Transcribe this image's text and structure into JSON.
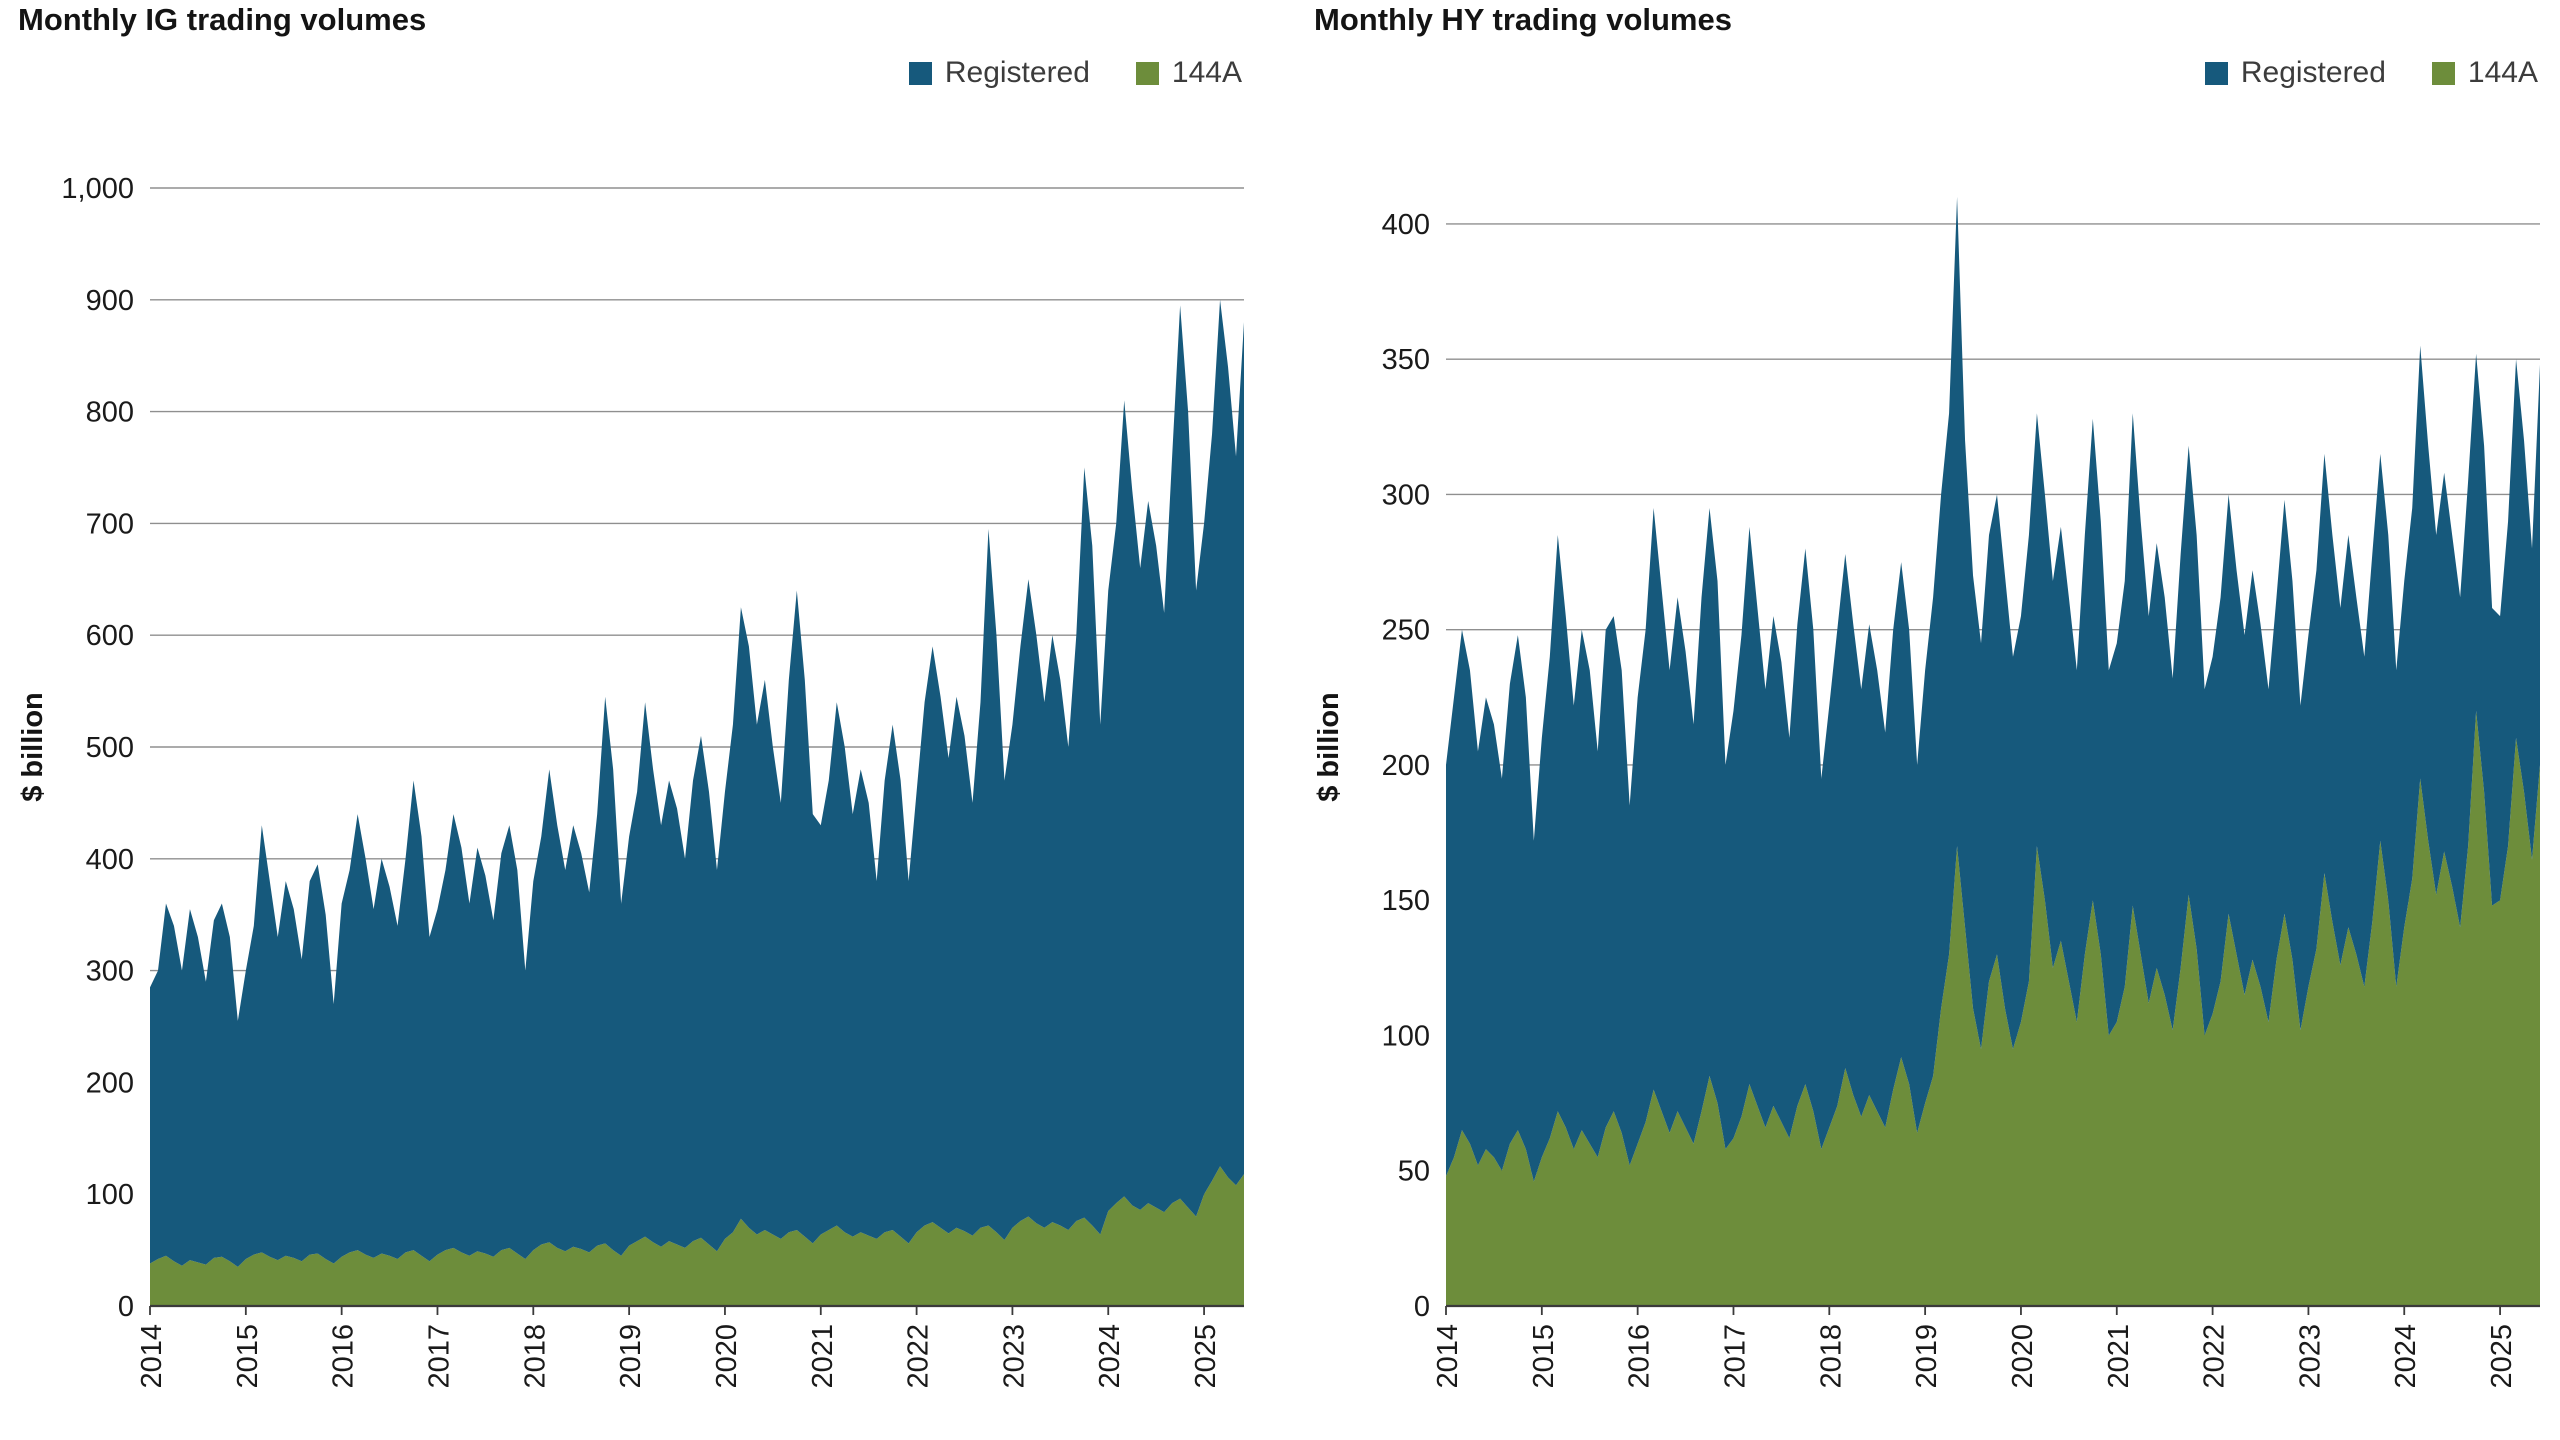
{
  "colors": {
    "registered": "#16597C",
    "a144": "#6D8D3B",
    "grid": "#8F8F8F",
    "axis": "#3A3A3A",
    "tick_text": "#1A1A1A",
    "title_text": "#141414",
    "legend_text": "#3C3C3C",
    "background": "#FFFFFF"
  },
  "chart_data": [
    {
      "type": "area",
      "stacked": true,
      "title": "Monthly IG trading volumes",
      "ylabel": "$ billion",
      "x_unit": "month",
      "x_start": "2014-01",
      "x_end": "2025-06",
      "n_points": 138,
      "x_tick_labels": [
        "2014",
        "2015",
        "2016",
        "2017",
        "2018",
        "2019",
        "2020",
        "2021",
        "2022",
        "2023",
        "2024",
        "2025"
      ],
      "x_tick_indices": [
        0,
        12,
        24,
        36,
        48,
        60,
        72,
        84,
        96,
        108,
        120,
        132
      ],
      "ylim": [
        0,
        1000
      ],
      "y_ticks": [
        0,
        100,
        200,
        300,
        400,
        500,
        600,
        700,
        800,
        900,
        1000
      ],
      "y_tick_labels": [
        "0",
        "100",
        "200",
        "300",
        "400",
        "500",
        "600",
        "700",
        "800",
        "900",
        "1,000"
      ],
      "grid": true,
      "legend_position": "top-right",
      "stack_order": [
        "144A",
        "Registered"
      ],
      "series": [
        {
          "name": "Registered",
          "color": "#16597C",
          "values": [
            247,
            258,
            315,
            300,
            264,
            314,
            291,
            253,
            302,
            316,
            290,
            220,
            258,
            294,
            382,
            336,
            289,
            335,
            312,
            270,
            334,
            348,
            308,
            232,
            316,
            342,
            390,
            354,
            312,
            353,
            330,
            298,
            352,
            420,
            375,
            290,
            309,
            340,
            388,
            362,
            315,
            361,
            338,
            301,
            355,
            378,
            343,
            258,
            330,
            365,
            423,
            378,
            341,
            377,
            354,
            322,
            386,
            489,
            430,
            315,
            366,
            402,
            478,
            423,
            377,
            412,
            390,
            348,
            412,
            449,
            405,
            341,
            400,
            454,
            547,
            520,
            456,
            492,
            436,
            390,
            494,
            572,
            498,
            384,
            366,
            402,
            468,
            434,
            378,
            414,
            387,
            320,
            404,
            452,
            408,
            324,
            394,
            468,
            515,
            475,
            425,
            475,
            443,
            387,
            470,
            623,
            534,
            411,
            450,
            514,
            570,
            526,
            470,
            525,
            488,
            432,
            524,
            671,
            608,
            456,
            555,
            608,
            712,
            640,
            574,
            628,
            592,
            536,
            668,
            799,
            712,
            560,
            600,
            668,
            775,
            725,
            652,
            762
          ]
        },
        {
          "name": "144A",
          "color": "#6D8D3B",
          "values": [
            38,
            42,
            45,
            40,
            36,
            41,
            39,
            37,
            43,
            44,
            40,
            35,
            42,
            46,
            48,
            44,
            41,
            45,
            43,
            40,
            46,
            47,
            42,
            38,
            44,
            48,
            50,
            46,
            43,
            47,
            45,
            42,
            48,
            50,
            45,
            40,
            46,
            50,
            52,
            48,
            45,
            49,
            47,
            44,
            50,
            52,
            47,
            42,
            50,
            55,
            57,
            52,
            49,
            53,
            51,
            48,
            54,
            56,
            50,
            45,
            54,
            58,
            62,
            57,
            53,
            58,
            55,
            52,
            58,
            61,
            55,
            49,
            60,
            66,
            78,
            70,
            64,
            68,
            64,
            60,
            66,
            68,
            62,
            56,
            64,
            68,
            72,
            66,
            62,
            66,
            63,
            60,
            66,
            68,
            62,
            56,
            66,
            72,
            75,
            70,
            65,
            70,
            67,
            63,
            70,
            72,
            66,
            59,
            70,
            76,
            80,
            74,
            70,
            75,
            72,
            68,
            76,
            79,
            72,
            64,
            85,
            92,
            98,
            90,
            86,
            92,
            88,
            84,
            92,
            96,
            88,
            80,
            100,
            112,
            125,
            115,
            108,
            118
          ]
        }
      ]
    },
    {
      "type": "area",
      "stacked": true,
      "title": "Monthly HY trading volumes",
      "ylabel": "$ billion",
      "x_unit": "month",
      "x_start": "2014-01",
      "x_end": "2025-06",
      "n_points": 138,
      "x_tick_labels": [
        "2014",
        "2015",
        "2016",
        "2017",
        "2018",
        "2019",
        "2020",
        "2021",
        "2022",
        "2023",
        "2024",
        "2025"
      ],
      "x_tick_indices": [
        0,
        12,
        24,
        36,
        48,
        60,
        72,
        84,
        96,
        108,
        120,
        132
      ],
      "ylim": [
        0,
        400
      ],
      "y_ticks": [
        0,
        50,
        100,
        150,
        200,
        250,
        300,
        350,
        400
      ],
      "y_tick_labels": [
        "0",
        "50",
        "100",
        "150",
        "200",
        "250",
        "300",
        "350",
        "400"
      ],
      "grid": true,
      "legend_position": "top-right",
      "stack_order": [
        "144A",
        "Registered"
      ],
      "series": [
        {
          "name": "Registered",
          "color": "#16597C",
          "values": [
            152,
            170,
            185,
            175,
            153,
            167,
            160,
            145,
            170,
            183,
            167,
            126,
            155,
            178,
            213,
            189,
            164,
            185,
            175,
            150,
            184,
            183,
            171,
            133,
            165,
            182,
            215,
            193,
            171,
            190,
            176,
            155,
            190,
            210,
            193,
            142,
            158,
            178,
            206,
            184,
            162,
            181,
            170,
            148,
            178,
            198,
            178,
            137,
            156,
            176,
            190,
            174,
            158,
            174,
            163,
            146,
            170,
            183,
            168,
            136,
            160,
            177,
            190,
            200,
            240,
            180,
            160,
            150,
            165,
            170,
            160,
            145,
            150,
            165,
            160,
            150,
            143,
            153,
            142,
            130,
            155,
            178,
            160,
            135,
            140,
            150,
            182,
            160,
            143,
            157,
            147,
            130,
            153,
            166,
            153,
            128,
            132,
            142,
            155,
            142,
            133,
            144,
            134,
            123,
            134,
            153,
            140,
            120,
            130,
            140,
            155,
            143,
            132,
            145,
            132,
            122,
            136,
            143,
            135,
            117,
            128,
            137,
            160,
            146,
            133,
            140,
            130,
            122,
            135,
            132,
            128,
            110,
            105,
            120,
            140,
            130,
            115,
            148
          ]
        },
        {
          "name": "144A",
          "color": "#6D8D3B",
          "values": [
            48,
            55,
            65,
            60,
            52,
            58,
            55,
            50,
            60,
            65,
            58,
            46,
            55,
            62,
            72,
            66,
            58,
            65,
            60,
            55,
            66,
            72,
            64,
            52,
            60,
            68,
            80,
            72,
            64,
            72,
            66,
            60,
            72,
            85,
            75,
            58,
            62,
            70,
            82,
            74,
            66,
            74,
            68,
            62,
            74,
            82,
            72,
            58,
            66,
            74,
            88,
            78,
            70,
            78,
            72,
            66,
            80,
            92,
            82,
            64,
            75,
            85,
            110,
            130,
            170,
            140,
            110,
            95,
            120,
            130,
            110,
            95,
            105,
            120,
            170,
            150,
            125,
            135,
            120,
            105,
            130,
            150,
            130,
            100,
            105,
            118,
            148,
            130,
            112,
            125,
            115,
            102,
            125,
            152,
            132,
            100,
            108,
            120,
            145,
            130,
            115,
            128,
            118,
            105,
            128,
            145,
            128,
            102,
            118,
            132,
            160,
            142,
            126,
            140,
            130,
            118,
            142,
            172,
            150,
            118,
            140,
            158,
            195,
            172,
            152,
            168,
            155,
            140,
            170,
            220,
            190,
            148,
            150,
            170,
            210,
            190,
            165,
            200
          ]
        }
      ]
    }
  ]
}
